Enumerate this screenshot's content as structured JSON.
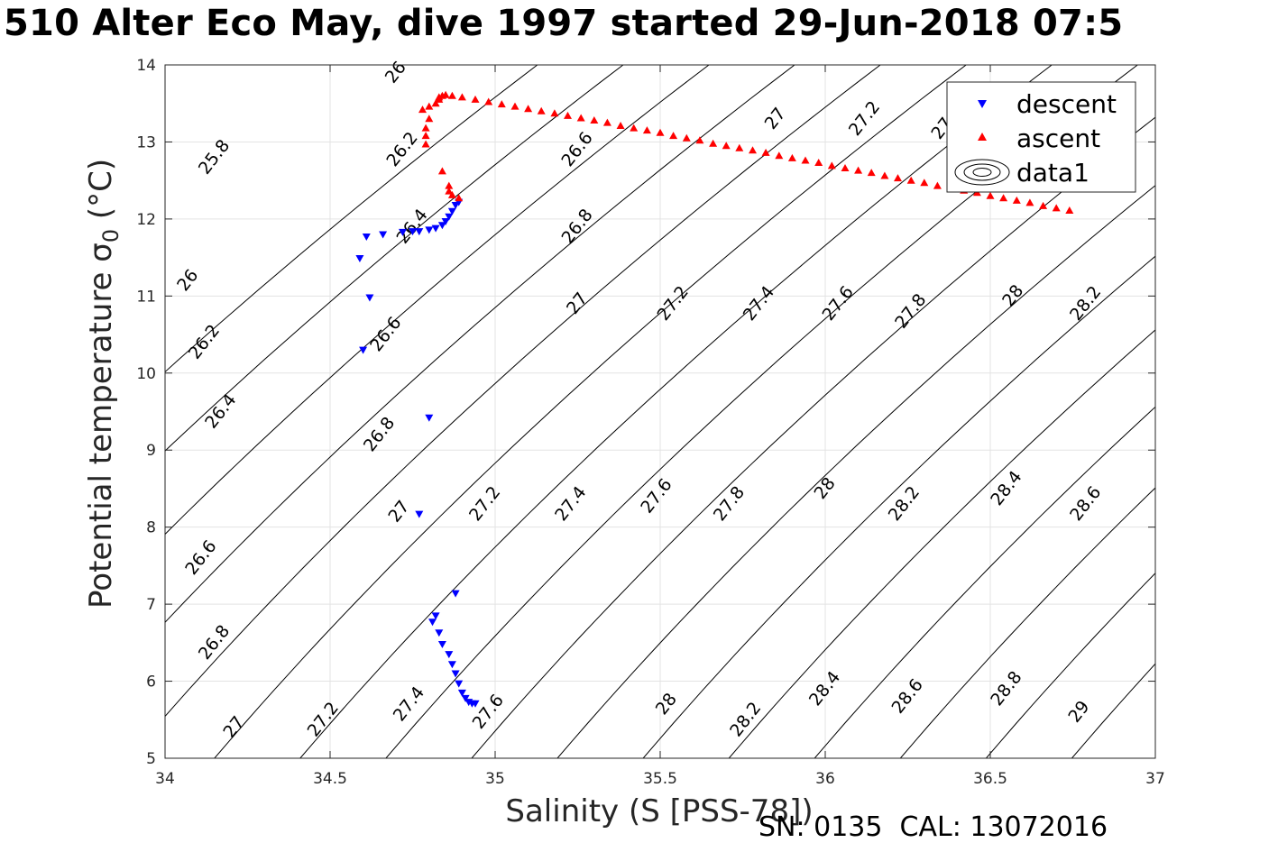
{
  "title": "510 Alter Eco May, dive 1997 started 29-Jun-2018 07:5",
  "footer": "SN: 0135  CAL: 13072016",
  "chart_data": {
    "type": "scatter",
    "title": "510 Alter Eco May, dive 1997 started 29-Jun-2018 07:5",
    "xlabel": "Salinity (S [PSS-78])",
    "ylabel": "Potential temperature σ",
    "ylabel_sub": "0",
    "ylabel_unit": " (°C)",
    "xlim": [
      34,
      37
    ],
    "ylim": [
      5,
      14
    ],
    "xticks": [
      34,
      34.5,
      35,
      35.5,
      36,
      36.5,
      37
    ],
    "xtick_labels": [
      "34",
      "34.5",
      "35",
      "35.5",
      "36",
      "36.5",
      "37"
    ],
    "yticks": [
      5,
      6,
      7,
      8,
      9,
      10,
      11,
      12,
      13,
      14
    ],
    "ytick_labels": [
      "5",
      "6",
      "7",
      "8",
      "9",
      "10",
      "11",
      "12",
      "13",
      "14"
    ],
    "grid": true,
    "legend_position": "top-right",
    "series": [
      {
        "name": "descent",
        "color": "#0000ff",
        "marker": "triangle-down",
        "points": [
          [
            34.59,
            11.49
          ],
          [
            34.61,
            11.77
          ],
          [
            34.62,
            10.98
          ],
          [
            34.6,
            10.3
          ],
          [
            34.66,
            11.8
          ],
          [
            34.72,
            11.83
          ],
          [
            34.75,
            11.84
          ],
          [
            34.77,
            11.84
          ],
          [
            34.8,
            11.86
          ],
          [
            34.82,
            11.88
          ],
          [
            34.84,
            11.92
          ],
          [
            34.85,
            11.97
          ],
          [
            34.86,
            12.03
          ],
          [
            34.87,
            12.1
          ],
          [
            34.88,
            12.18
          ],
          [
            34.89,
            12.22
          ],
          [
            34.8,
            9.42
          ],
          [
            34.77,
            8.17
          ],
          [
            34.88,
            7.14
          ],
          [
            34.82,
            6.85
          ],
          [
            34.81,
            6.77
          ],
          [
            34.83,
            6.63
          ],
          [
            34.84,
            6.48
          ],
          [
            34.86,
            6.35
          ],
          [
            34.87,
            6.22
          ],
          [
            34.88,
            6.1
          ],
          [
            34.89,
            5.97
          ],
          [
            34.9,
            5.85
          ],
          [
            34.91,
            5.78
          ],
          [
            34.92,
            5.73
          ],
          [
            34.93,
            5.71
          ],
          [
            34.94,
            5.71
          ]
        ]
      },
      {
        "name": "ascent",
        "color": "#ff0000",
        "marker": "triangle-up",
        "points": [
          [
            34.89,
            12.27
          ],
          [
            34.87,
            12.31
          ],
          [
            34.86,
            12.36
          ],
          [
            34.86,
            12.43
          ],
          [
            34.84,
            12.62
          ],
          [
            34.79,
            12.97
          ],
          [
            34.79,
            13.08
          ],
          [
            34.79,
            13.18
          ],
          [
            34.8,
            13.3
          ],
          [
            34.78,
            13.42
          ],
          [
            34.8,
            13.46
          ],
          [
            34.82,
            13.5
          ],
          [
            34.83,
            13.55
          ],
          [
            34.83,
            13.58
          ],
          [
            34.84,
            13.6
          ],
          [
            34.85,
            13.61
          ],
          [
            34.87,
            13.6
          ],
          [
            34.9,
            13.58
          ],
          [
            34.94,
            13.55
          ],
          [
            34.98,
            13.52
          ],
          [
            35.02,
            13.49
          ],
          [
            35.06,
            13.46
          ],
          [
            35.1,
            13.43
          ],
          [
            35.14,
            13.4
          ],
          [
            35.18,
            13.37
          ],
          [
            35.22,
            13.34
          ],
          [
            35.26,
            13.31
          ],
          [
            35.3,
            13.28
          ],
          [
            35.34,
            13.25
          ],
          [
            35.38,
            13.21
          ],
          [
            35.42,
            13.18
          ],
          [
            35.46,
            13.15
          ],
          [
            35.5,
            13.12
          ],
          [
            35.54,
            13.08
          ],
          [
            35.58,
            13.05
          ],
          [
            35.62,
            13.02
          ],
          [
            35.66,
            12.98
          ],
          [
            35.7,
            12.95
          ],
          [
            35.74,
            12.92
          ],
          [
            35.78,
            12.89
          ],
          [
            35.82,
            12.86
          ],
          [
            35.86,
            12.82
          ],
          [
            35.9,
            12.79
          ],
          [
            35.94,
            12.76
          ],
          [
            35.98,
            12.73
          ],
          [
            36.02,
            12.69
          ],
          [
            36.06,
            12.66
          ],
          [
            36.1,
            12.63
          ],
          [
            36.14,
            12.6
          ],
          [
            36.18,
            12.56
          ],
          [
            36.22,
            12.53
          ],
          [
            36.26,
            12.5
          ],
          [
            36.3,
            12.47
          ],
          [
            36.34,
            12.43
          ],
          [
            36.38,
            12.4
          ],
          [
            36.42,
            12.37
          ],
          [
            36.46,
            12.34
          ],
          [
            36.5,
            12.3
          ],
          [
            36.54,
            12.27
          ],
          [
            36.58,
            12.24
          ],
          [
            36.62,
            12.21
          ],
          [
            36.66,
            12.17
          ],
          [
            36.7,
            12.14
          ],
          [
            36.74,
            12.11
          ]
        ]
      }
    ],
    "contours": {
      "name": "data1",
      "color": "#000000",
      "levels": [
        25.8,
        26,
        26.2,
        26.4,
        26.6,
        26.8,
        27,
        27.2,
        27.4,
        27.6,
        27.8,
        28,
        28.2,
        28.4,
        28.6,
        28.8,
        29
      ],
      "labels": [
        {
          "text": "25.8",
          "s": 34.15,
          "t": 12.8
        },
        {
          "text": "26",
          "s": 34.07,
          "t": 11.2
        },
        {
          "text": "26.2",
          "s": 34.12,
          "t": 10.4
        },
        {
          "text": "26.4",
          "s": 34.17,
          "t": 9.5
        },
        {
          "text": "26.6",
          "s": 34.11,
          "t": 7.6
        },
        {
          "text": "26.8",
          "s": 34.15,
          "t": 6.5
        },
        {
          "text": "27",
          "s": 34.21,
          "t": 5.4
        },
        {
          "text": "27.2",
          "s": 34.48,
          "t": 5.5
        },
        {
          "text": "27.4",
          "s": 34.74,
          "t": 5.7
        },
        {
          "text": "27.6",
          "s": 34.98,
          "t": 5.6
        },
        {
          "text": "28",
          "s": 35.52,
          "t": 5.7
        },
        {
          "text": "28.2",
          "s": 35.76,
          "t": 5.5
        },
        {
          "text": "28.4",
          "s": 36.0,
          "t": 5.9
        },
        {
          "text": "28.6",
          "s": 36.25,
          "t": 5.8
        },
        {
          "text": "28.8",
          "s": 36.55,
          "t": 5.9
        },
        {
          "text": "29",
          "s": 36.77,
          "t": 5.6
        },
        {
          "text": "26.2",
          "s": 34.72,
          "t": 12.9
        },
        {
          "text": "26.4",
          "s": 34.75,
          "t": 11.9
        },
        {
          "text": "26.6",
          "s": 34.67,
          "t": 10.5
        },
        {
          "text": "26.8",
          "s": 34.65,
          "t": 9.2
        },
        {
          "text": "27",
          "s": 34.71,
          "t": 8.2
        },
        {
          "text": "27.2",
          "s": 34.97,
          "t": 8.3
        },
        {
          "text": "27.4",
          "s": 35.23,
          "t": 8.3
        },
        {
          "text": "27.6",
          "s": 35.49,
          "t": 8.4
        },
        {
          "text": "27.8",
          "s": 35.71,
          "t": 8.3
        },
        {
          "text": "28",
          "s": 36.0,
          "t": 8.5
        },
        {
          "text": "28.2",
          "s": 36.24,
          "t": 8.3
        },
        {
          "text": "28.4",
          "s": 36.55,
          "t": 8.5
        },
        {
          "text": "28.6",
          "s": 36.79,
          "t": 8.3
        },
        {
          "text": "26",
          "s": 34.7,
          "t": 13.9
        },
        {
          "text": "26.6",
          "s": 35.25,
          "t": 12.9
        },
        {
          "text": "26.8",
          "s": 35.25,
          "t": 11.9
        },
        {
          "text": "27",
          "s": 35.25,
          "t": 10.9
        },
        {
          "text": "27.2",
          "s": 35.54,
          "t": 10.9
        },
        {
          "text": "27.4",
          "s": 35.8,
          "t": 10.9
        },
        {
          "text": "27.6",
          "s": 36.04,
          "t": 10.9
        },
        {
          "text": "27.8",
          "s": 36.26,
          "t": 10.8
        },
        {
          "text": "28",
          "s": 36.57,
          "t": 11.0
        },
        {
          "text": "28.2",
          "s": 36.79,
          "t": 10.9
        },
        {
          "text": "27",
          "s": 35.85,
          "t": 13.3
        },
        {
          "text": "27.2",
          "s": 36.12,
          "t": 13.3
        },
        {
          "text": "27.",
          "s": 36.36,
          "t": 13.2
        }
      ]
    }
  }
}
